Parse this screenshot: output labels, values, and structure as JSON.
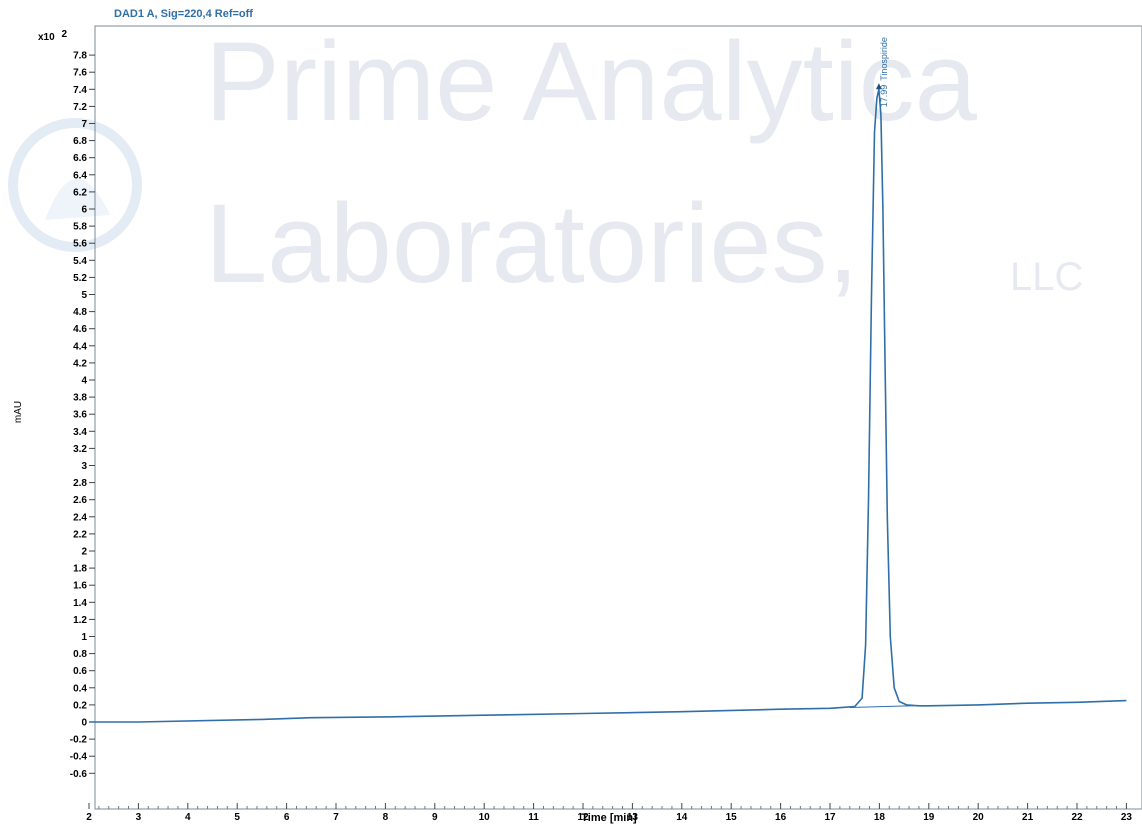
{
  "watermark": {
    "line1": "Prime Analytica",
    "line2": "Laboratories,",
    "suffix": "LLC",
    "color": "#e6eaf0"
  },
  "chart_data": {
    "type": "line",
    "title": "DAD1 A, Sig=220,4 Ref=off",
    "xlabel": "Time [min]",
    "ylabel": "mAU",
    "y_multiplier_label": "x10",
    "y_multiplier_exponent": "2",
    "xlim": [
      2,
      23
    ],
    "ylim": [
      -0.72,
      8.1
    ],
    "x_ticks": [
      2,
      3,
      4,
      5,
      6,
      7,
      8,
      9,
      10,
      11,
      12,
      13,
      14,
      15,
      16,
      17,
      18,
      19,
      20,
      21,
      22,
      23
    ],
    "x_tick_labels": [
      "2",
      "3",
      "4",
      "5",
      "6",
      "7",
      "8",
      "9",
      "10",
      "11",
      "12",
      "13",
      "14",
      "15",
      "16",
      "17",
      "18",
      "19",
      "20",
      "21",
      "22",
      "23"
    ],
    "y_ticks": [
      -0.6,
      -0.4,
      -0.2,
      0,
      0.2,
      0.4,
      0.6,
      0.8,
      1,
      1.2,
      1.4,
      1.6,
      1.8,
      2,
      2.2,
      2.4,
      2.6,
      2.8,
      3,
      3.2,
      3.4,
      3.6,
      3.8,
      4,
      4.2,
      4.4,
      4.6,
      4.8,
      5,
      5.2,
      5.4,
      5.6,
      5.8,
      6,
      6.2,
      6.4,
      6.6,
      6.8,
      7,
      7.2,
      7.4,
      7.6,
      7.8
    ],
    "y_tick_labels": [
      "-0.6",
      "-0.4",
      "-0.2",
      "0",
      "0.2",
      "0.4",
      "0.6",
      "0.8",
      "1",
      "1.2",
      "1.4",
      "1.6",
      "1.8",
      "2",
      "2.2",
      "2.4",
      "2.6",
      "2.8",
      "3",
      "3.2",
      "3.4",
      "3.6",
      "3.8",
      "4",
      "4.2",
      "4.4",
      "4.6",
      "4.8",
      "5",
      "5.2",
      "5.4",
      "5.6",
      "5.8",
      "6",
      "6.2",
      "6.4",
      "6.6",
      "6.8",
      "7",
      "7.2",
      "7.4",
      "7.6",
      "7.8"
    ],
    "series": [
      {
        "color": "#2f6fa8",
        "x": [
          2,
          3,
          5.5,
          6.5,
          8,
          10,
          12,
          14,
          16,
          17,
          17.5,
          17.65,
          17.72,
          17.78,
          17.84,
          17.9,
          17.95,
          17.99,
          18.03,
          18.07,
          18.11,
          18.16,
          18.22,
          18.3,
          18.4,
          18.55,
          18.8,
          19,
          20,
          21,
          22,
          23
        ],
        "y": [
          0.0,
          0.0,
          0.03,
          0.05,
          0.06,
          0.08,
          0.1,
          0.12,
          0.15,
          0.16,
          0.18,
          0.28,
          0.9,
          2.6,
          5.0,
          6.9,
          7.3,
          7.4,
          7.1,
          6.0,
          4.4,
          2.4,
          1.0,
          0.4,
          0.24,
          0.2,
          0.19,
          0.19,
          0.2,
          0.22,
          0.23,
          0.25
        ]
      }
    ],
    "baseline": {
      "color": "#2f6fa8",
      "x": [
        17.4,
        18.7
      ],
      "y": [
        0.17,
        0.19
      ]
    },
    "annotations": [
      {
        "x": 17.99,
        "y": 7.4,
        "rt": "17.99",
        "text": "Tinospiride"
      }
    ],
    "grid": false,
    "legend": "none"
  }
}
